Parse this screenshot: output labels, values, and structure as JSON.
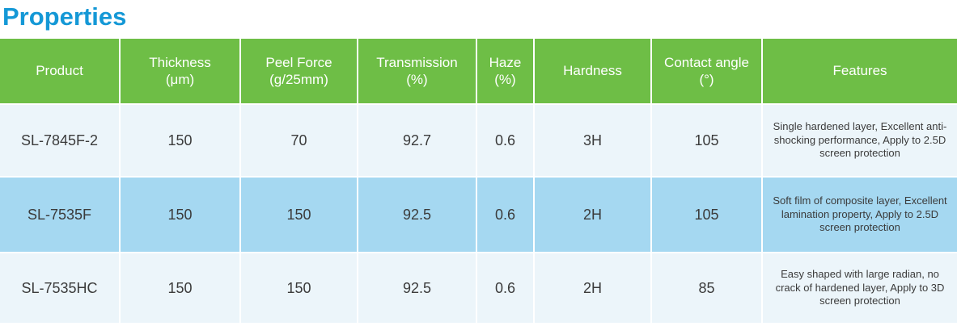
{
  "page": {
    "title": "Properties"
  },
  "colors": {
    "title_blue": "#1498d6",
    "header_green": "#6ebe46",
    "header_text": "#ffffff",
    "row_light_bg": "#ecf5fa",
    "row_highlight_bg": "#a5d8f1",
    "cell_text": "#3b3b3b"
  },
  "table": {
    "columns": [
      {
        "line1": "Product",
        "line2": ""
      },
      {
        "line1": "Thickness",
        "line2": "(μm)"
      },
      {
        "line1": "Peel Force",
        "line2": "(g/25mm)"
      },
      {
        "line1": "Transmission",
        "line2": "(%)"
      },
      {
        "line1": "Haze",
        "line2": "(%)"
      },
      {
        "line1": "Hardness",
        "line2": ""
      },
      {
        "line1": "Contact angle",
        "line2": "(°)"
      },
      {
        "line1": "Features",
        "line2": ""
      }
    ],
    "rows": [
      {
        "cells": [
          "SL-7845F-2",
          "150",
          "70",
          "92.7",
          "0.6",
          "3H",
          "105",
          "Single hardened layer, Excellent anti-shocking performance, Apply to 2.5D screen protection"
        ]
      },
      {
        "cells": [
          "SL-7535F",
          "150",
          "150",
          "92.5",
          "0.6",
          "2H",
          "105",
          "Soft film of composite layer, Excellent lamination property, Apply to 2.5D screen protection"
        ]
      },
      {
        "cells": [
          "SL-7535HC",
          "150",
          "150",
          "92.5",
          "0.6",
          "2H",
          "85",
          "Easy shaped with large radian, no crack of hardened layer, Apply to 3D screen protection"
        ]
      }
    ]
  }
}
